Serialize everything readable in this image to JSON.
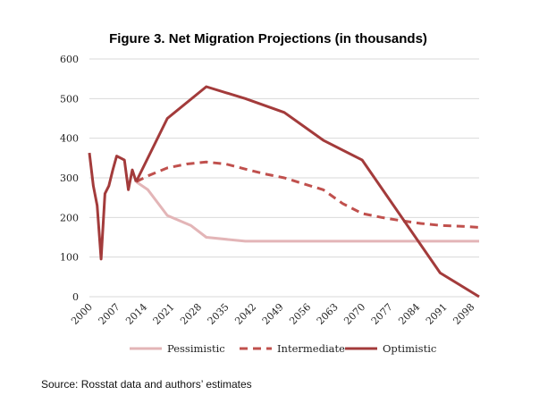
{
  "chart_data": {
    "type": "line",
    "title": "Figure 3.  Net Migration Projections (in thousands)",
    "xlabel": "",
    "ylabel": "",
    "ylim": [
      0,
      600
    ],
    "yticks": [
      0,
      100,
      200,
      300,
      400,
      500,
      600
    ],
    "xlim": [
      2000,
      2100
    ],
    "xticks": [
      "2000",
      "2007",
      "2014",
      "2021",
      "2028",
      "2035",
      "2042",
      "2049",
      "2056",
      "2063",
      "2070",
      "2077",
      "2084",
      "2091",
      "2098"
    ],
    "grid": true,
    "legend_position": "bottom",
    "history": {
      "x": [
        2000,
        2001,
        2002,
        2003,
        2004,
        2005,
        2006,
        2007,
        2008,
        2009,
        2010,
        2011,
        2012
      ],
      "y": [
        363,
        280,
        230,
        95,
        260,
        280,
        320,
        355,
        350,
        345,
        270,
        320,
        290
      ]
    },
    "series": [
      {
        "name": "Pessimistic",
        "color": "#e3b5b7",
        "dash": "solid",
        "x": [
          2012,
          2015,
          2020,
          2026,
          2030,
          2040,
          2050,
          2060,
          2070,
          2080,
          2090,
          2100
        ],
        "y": [
          290,
          270,
          205,
          180,
          150,
          140,
          140,
          140,
          140,
          140,
          140,
          140
        ]
      },
      {
        "name": "Intermediate",
        "color": "#c0504d",
        "dash": "dashed",
        "x": [
          2012,
          2015,
          2020,
          2025,
          2030,
          2035,
          2040,
          2045,
          2050,
          2055,
          2060,
          2065,
          2070,
          2075,
          2080,
          2085,
          2090,
          2095,
          2100
        ],
        "y": [
          290,
          305,
          325,
          335,
          340,
          335,
          322,
          310,
          300,
          285,
          270,
          235,
          210,
          200,
          192,
          185,
          180,
          178,
          175
        ]
      },
      {
        "name": "Optimistic",
        "color": "#a33b3b",
        "dash": "solid",
        "x": [
          2012,
          2020,
          2030,
          2040,
          2050,
          2060,
          2070,
          2090,
          2100
        ],
        "y": [
          290,
          450,
          530,
          500,
          465,
          395,
          345,
          60,
          0
        ]
      }
    ]
  },
  "source": "Source: Rosstat data and authors’ estimates"
}
